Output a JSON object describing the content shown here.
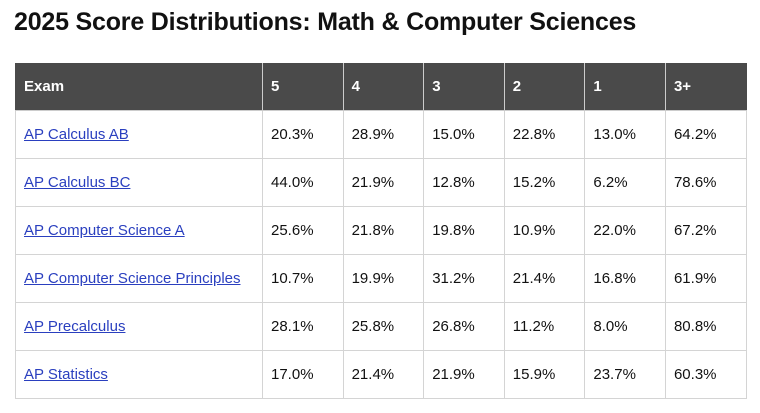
{
  "title": "2025 Score Distributions: Math & Computer Sciences",
  "table": {
    "headers": [
      "Exam",
      "5",
      "4",
      "3",
      "2",
      "1",
      "3+"
    ],
    "rows": [
      {
        "exam": "AP Calculus AB",
        "values": [
          "20.3%",
          "28.9%",
          "15.0%",
          "22.8%",
          "13.0%",
          "64.2%"
        ]
      },
      {
        "exam": "AP Calculus BC",
        "values": [
          "44.0%",
          "21.9%",
          "12.8%",
          "15.2%",
          "6.2%",
          "78.6%"
        ]
      },
      {
        "exam": "AP Computer Science A",
        "values": [
          "25.6%",
          "21.8%",
          "19.8%",
          "10.9%",
          "22.0%",
          "67.2%"
        ]
      },
      {
        "exam": "AP Computer Science Principles",
        "values": [
          "10.7%",
          "19.9%",
          "31.2%",
          "21.4%",
          "16.8%",
          "61.9%"
        ]
      },
      {
        "exam": "AP Precalculus",
        "values": [
          "28.1%",
          "25.8%",
          "26.8%",
          "11.2%",
          "8.0%",
          "80.8%"
        ]
      },
      {
        "exam": "AP Statistics",
        "values": [
          "17.0%",
          "21.4%",
          "21.9%",
          "15.9%",
          "23.7%",
          "60.3%"
        ]
      }
    ]
  },
  "colors": {
    "header_bg": "#4a4a4a",
    "link": "#2a3fbf",
    "border": "#d4d4d4"
  }
}
